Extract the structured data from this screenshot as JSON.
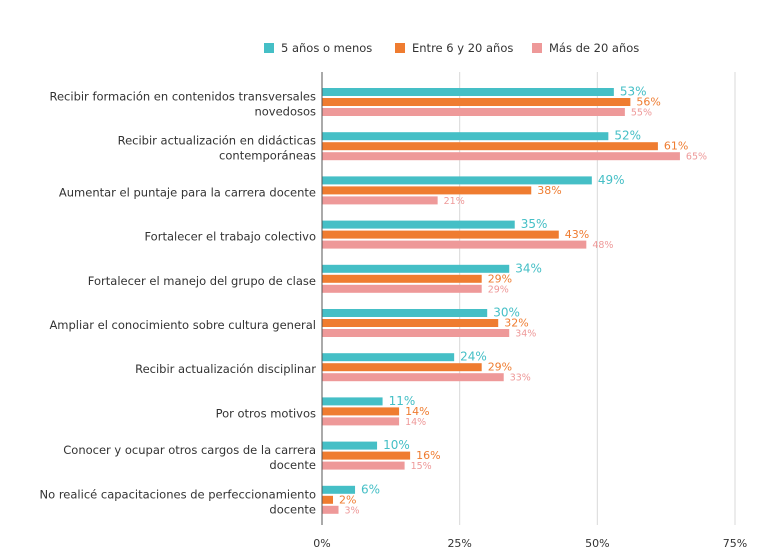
{
  "chart_data": {
    "type": "bar",
    "orientation": "horizontal",
    "categories": [
      [
        "Recibir formación en contenidos transversales",
        "novedosos"
      ],
      [
        "Recibir actualización en didácticas",
        "contemporáneas"
      ],
      [
        "Aumentar el puntaje para la carrera docente"
      ],
      [
        "Fortalecer el trabajo colectivo"
      ],
      [
        "Fortalecer el manejo del grupo de clase"
      ],
      [
        "Ampliar el conocimiento sobre cultura general"
      ],
      [
        "Recibir actualización disciplinar"
      ],
      [
        "Por otros motivos"
      ],
      [
        "Conocer y ocupar otros cargos de la carrera",
        "docente"
      ],
      [
        "No realicé capacitaciones de perfeccionamiento",
        "docente"
      ]
    ],
    "series": [
      {
        "name": "5 años o menos",
        "color": "#45bfc6",
        "values": [
          53,
          52,
          49,
          35,
          34,
          30,
          24,
          11,
          10,
          6
        ]
      },
      {
        "name": "Entre 6 y 20 años",
        "color": "#ef7c30",
        "values": [
          56,
          61,
          38,
          43,
          29,
          32,
          29,
          14,
          16,
          2
        ]
      },
      {
        "name": "Más de 20 años",
        "color": "#ee9999",
        "values": [
          55,
          65,
          21,
          48,
          29,
          34,
          33,
          14,
          15,
          3
        ]
      }
    ],
    "value_suffix": "%",
    "xticks": [
      0,
      25,
      50,
      75
    ],
    "xlim": [
      0,
      75
    ],
    "grid": true,
    "legend_position": "top-right"
  }
}
